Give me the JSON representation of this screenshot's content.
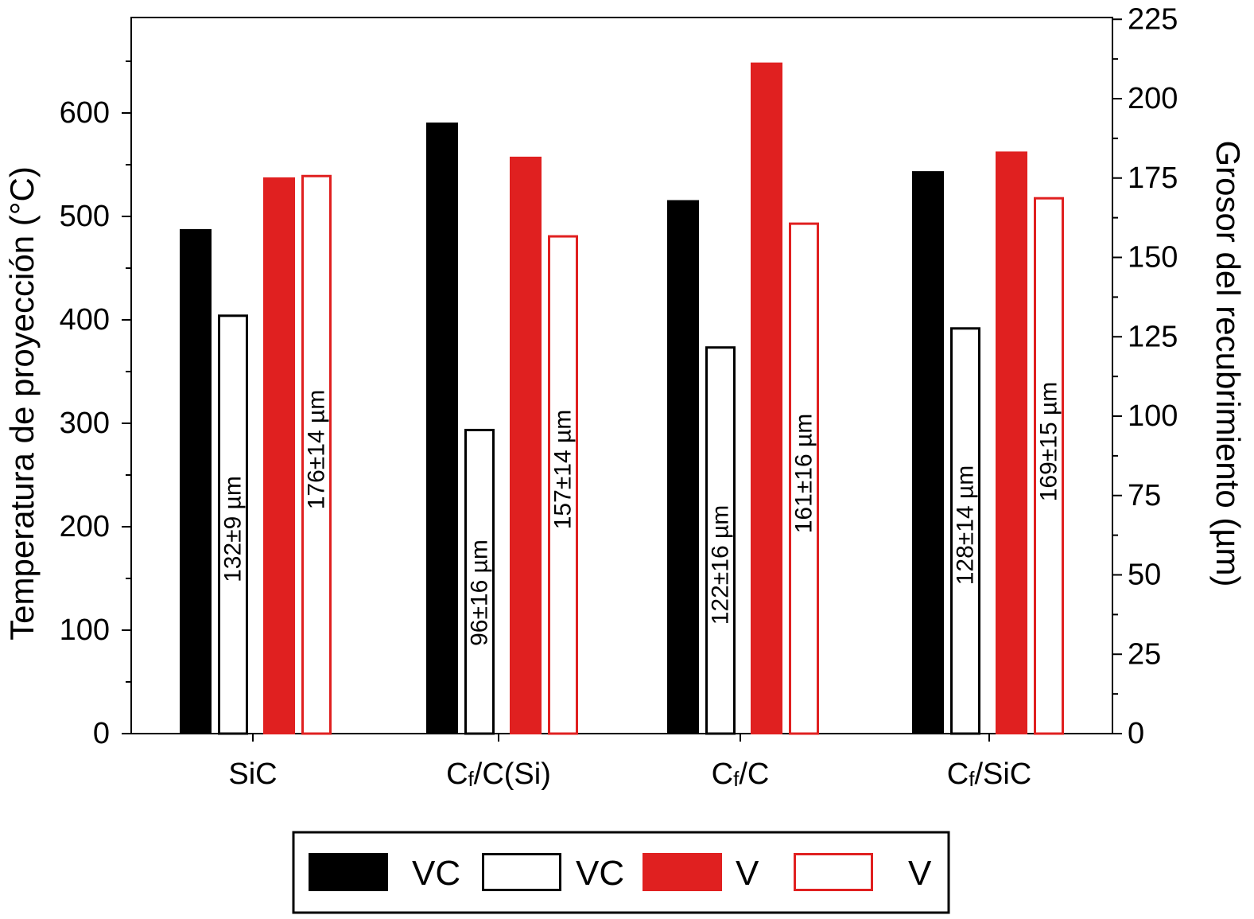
{
  "chart_data": {
    "type": "bar",
    "categories": [
      "SiC",
      "Cf/C(Si)",
      "Cf/C",
      "Cf/SiC"
    ],
    "category_labels": [
      {
        "main": "SiC",
        "sub": ""
      },
      {
        "main": "C",
        "sub": "f",
        "rest": "/C(Si)"
      },
      {
        "main": "C",
        "sub": "f",
        "rest": "/C"
      },
      {
        "main": "C",
        "sub": "f",
        "rest": "/SiC"
      }
    ],
    "ylabel_left": "Temperatura de proyección (°C)",
    "ylabel_right": "Grosor del recubrimiento (µm)",
    "ylim_left": [
      0,
      690
    ],
    "ylim_right": [
      0,
      225
    ],
    "yticks_left": [
      0,
      100,
      200,
      300,
      400,
      500,
      600
    ],
    "yticks_right": [
      0,
      25,
      50,
      75,
      100,
      125,
      150,
      175,
      200,
      225
    ],
    "series": [
      {
        "name": "VC",
        "axis": "left",
        "style": "filled",
        "color": "#000000",
        "values": [
          487,
          590,
          515,
          543
        ]
      },
      {
        "name": "VC",
        "axis": "right",
        "style": "outline",
        "color": "#000000",
        "values": [
          132,
          96,
          122,
          128
        ],
        "labels": [
          "132±9 µm",
          "96±16 µm",
          "122±16 µm",
          "128±14 µm"
        ]
      },
      {
        "name": "V",
        "axis": "left",
        "style": "filled",
        "color": "#e02020",
        "values": [
          537,
          557,
          648,
          562
        ]
      },
      {
        "name": "V",
        "axis": "right",
        "style": "outline",
        "color": "#e02020",
        "values": [
          176,
          157,
          161,
          169
        ],
        "labels": [
          "176±14 µm",
          "157±14 µm",
          "161±16 µm",
          "169±15 µm"
        ]
      }
    ],
    "legend_position": "bottom",
    "grid": false
  }
}
